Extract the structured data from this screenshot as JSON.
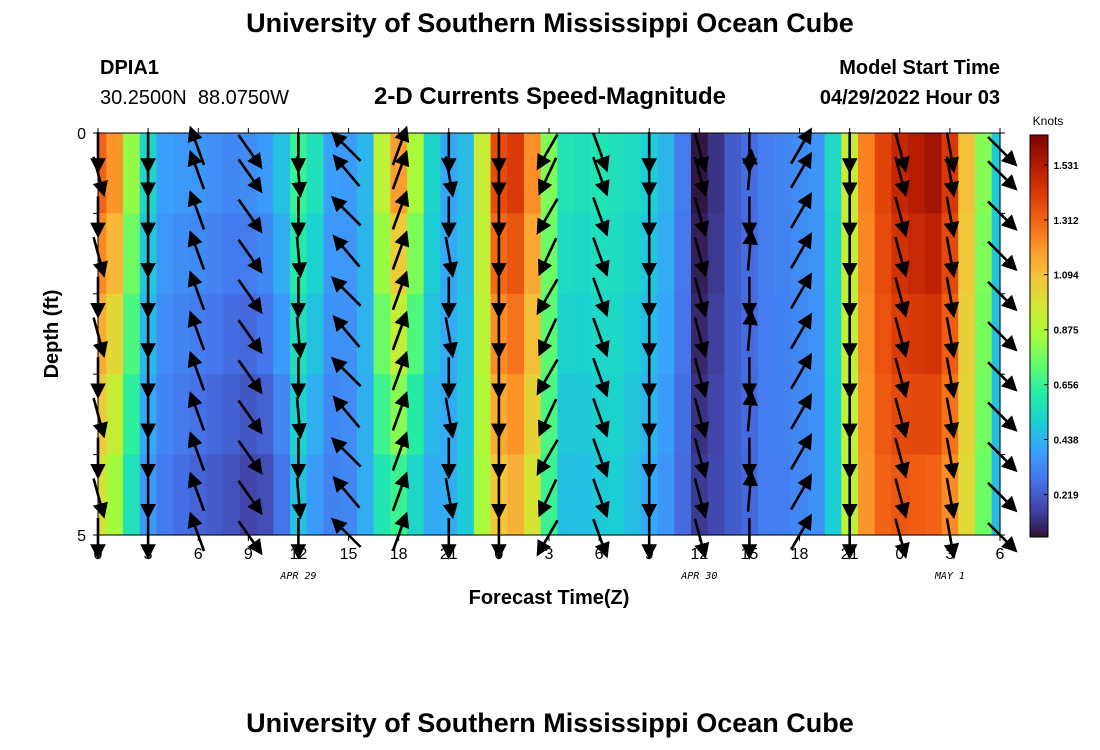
{
  "page": {
    "title": "University of Southern Mississippi Ocean Cube",
    "footer_title": "University of Southern Mississippi Ocean Cube",
    "station_id": "DPIA1",
    "location": "30.2500N  88.0750W",
    "model_start_label": "Model Start Time",
    "model_start_value": "04/29/2022 Hour 03"
  },
  "chart_data": {
    "type": "heatmap",
    "title": "2-D Currents Speed-Magnitude",
    "xlabel": "Forecast Time(Z)",
    "ylabel": "Depth (ft)",
    "x_tick_labels": [
      "0",
      "3",
      "6",
      "9",
      "12",
      "15",
      "18",
      "21",
      "0",
      "3",
      "6",
      "9",
      "12",
      "15",
      "18",
      "21",
      "0",
      "3",
      "6"
    ],
    "x_range_hours": [
      0,
      54
    ],
    "date_labels": [
      {
        "label": "APR 29",
        "hour": 12
      },
      {
        "label": "APR 30",
        "hour": 36
      },
      {
        "label": "MAY 1",
        "hour": 51
      }
    ],
    "y_tick_labels": [
      "0",
      "5"
    ],
    "y_range": [
      0,
      5
    ],
    "colorbar": {
      "unit": "Knots",
      "ticks": [
        "1.531",
        "1.312",
        "1.094",
        "0.875",
        "0.656",
        "0.438",
        "0.219"
      ],
      "tick_values": [
        1.531,
        1.312,
        1.094,
        0.875,
        0.656,
        0.438,
        0.219
      ],
      "min": 0.05,
      "max": 1.65,
      "colors": [
        "#30123b",
        "#4145ab",
        "#4675ed",
        "#39a2fc",
        "#1bcfd4",
        "#24eca6",
        "#61fc6c",
        "#a4fc3b",
        "#d1e834",
        "#f3c63a",
        "#fe9b2d",
        "#f36315",
        "#d93806",
        "#b11901",
        "#7a0403"
      ]
    },
    "hours": [
      0,
      1,
      2,
      3,
      4,
      5,
      6,
      7,
      8,
      9,
      10,
      11,
      12,
      13,
      14,
      15,
      16,
      17,
      18,
      19,
      20,
      21,
      22,
      23,
      24,
      25,
      26,
      27,
      28,
      29,
      30,
      31,
      32,
      33,
      34,
      35,
      36,
      37,
      38,
      39,
      40,
      41,
      42,
      43,
      44,
      45,
      46,
      47,
      48,
      49,
      50,
      51,
      52,
      53,
      54
    ],
    "surface_speed_knots": [
      1.35,
      1.25,
      0.85,
      0.55,
      0.4,
      0.38,
      0.38,
      0.36,
      0.34,
      0.36,
      0.4,
      0.5,
      0.68,
      0.6,
      0.4,
      0.38,
      0.45,
      0.95,
      1.25,
      0.9,
      0.55,
      0.4,
      0.45,
      0.95,
      1.4,
      1.45,
      1.25,
      0.8,
      0.6,
      0.58,
      0.6,
      0.58,
      0.56,
      0.52,
      0.45,
      0.3,
      0.05,
      0.12,
      0.22,
      0.26,
      0.3,
      0.32,
      0.34,
      0.36,
      0.55,
      0.95,
      1.25,
      1.4,
      1.5,
      1.55,
      1.6,
      1.45,
      1.1,
      0.8,
      0.5
    ],
    "bottom_speed_knots": [
      0.95,
      0.8,
      0.55,
      0.35,
      0.28,
      0.25,
      0.22,
      0.2,
      0.18,
      0.14,
      0.16,
      0.25,
      0.45,
      0.35,
      0.3,
      0.32,
      0.42,
      0.55,
      0.6,
      0.5,
      0.4,
      0.42,
      0.5,
      0.85,
      1.05,
      1.1,
      0.95,
      0.65,
      0.45,
      0.45,
      0.48,
      0.5,
      0.45,
      0.4,
      0.35,
      0.25,
      0.15,
      0.18,
      0.22,
      0.25,
      0.3,
      0.3,
      0.32,
      0.35,
      0.5,
      0.9,
      1.2,
      1.3,
      1.32,
      1.3,
      1.28,
      1.2,
      1.0,
      0.75,
      0.45
    ],
    "vectors": {
      "depth_rows": [
        0,
        0.5,
        1.0,
        1.5,
        2.0,
        2.5,
        3.0,
        3.5,
        4.0,
        4.5,
        5.0
      ],
      "hours": [
        0,
        3,
        6,
        9,
        12,
        15,
        18,
        21,
        24,
        27,
        30,
        33,
        36,
        39,
        42,
        45,
        48,
        51,
        54
      ],
      "flood_direction_deg": [
        180,
        180,
        340,
        145,
        180,
        315,
        20,
        180,
        180,
        210,
        160,
        180,
        165,
        180,
        30,
        180,
        165,
        170,
        135
      ],
      "ebb_direction_deg": [
        165,
        180,
        340,
        145,
        175,
        320,
        20,
        170,
        180,
        205,
        160,
        180,
        165,
        5,
        30,
        180,
        165,
        170,
        135
      ]
    }
  }
}
